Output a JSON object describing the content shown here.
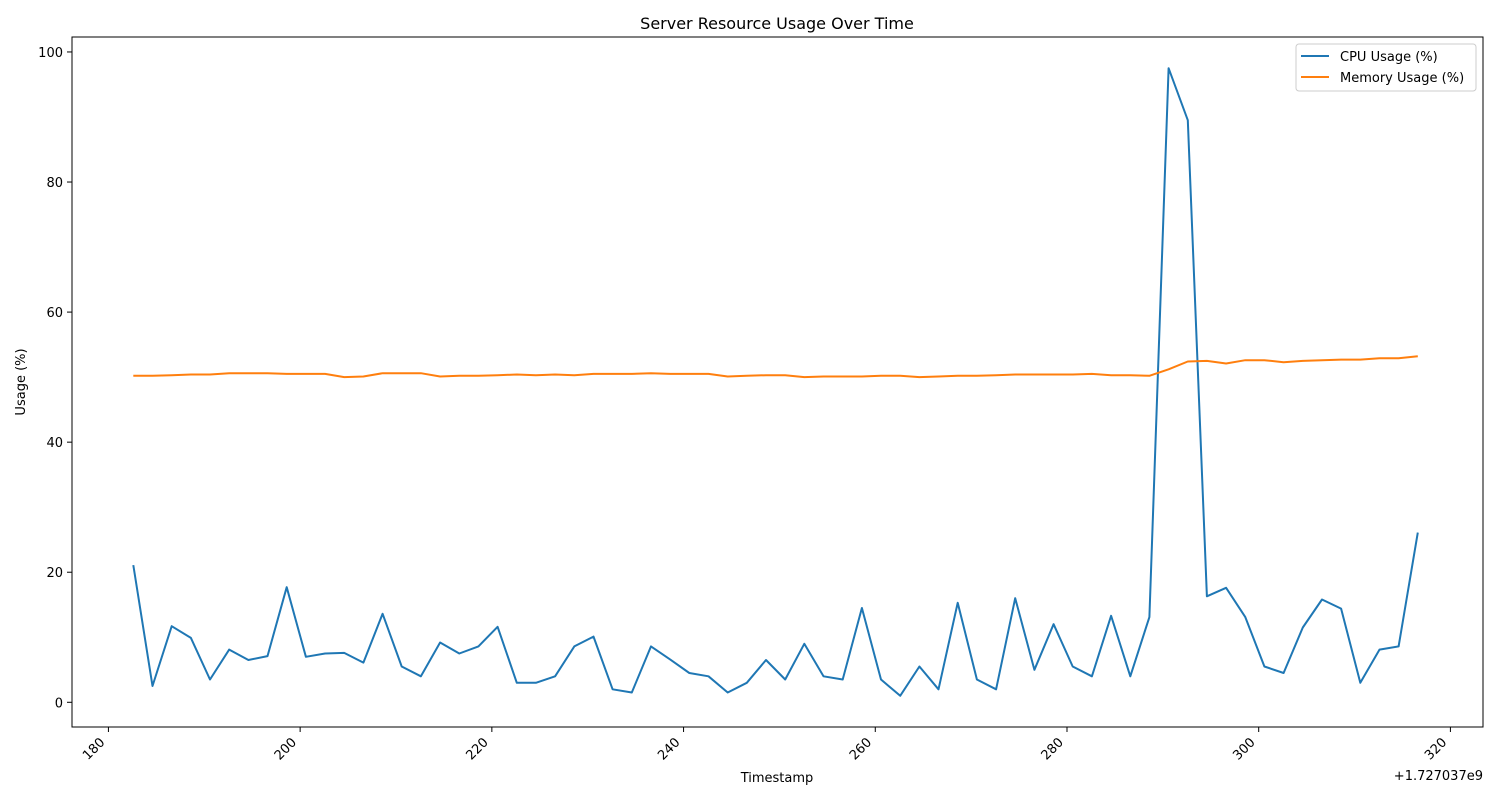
{
  "chart_data": {
    "type": "line",
    "title": "Server Resource Usage Over Time",
    "xlabel": "Timestamp",
    "ylabel": "Usage (%)",
    "x_offset_label": "+1.727037e9",
    "xlim": [
      176.2,
      323.4
    ],
    "ylim": [
      -3.8,
      102.3
    ],
    "x_ticks": [
      180,
      200,
      220,
      240,
      260,
      280,
      300,
      320
    ],
    "y_ticks": [
      0,
      20,
      40,
      60,
      80,
      100
    ],
    "grid": false,
    "legend_position": "top-right",
    "colors": {
      "cpu": "#1f77b4",
      "memory": "#ff7f0e"
    },
    "x": [
      182.6,
      184.6,
      186.6,
      188.6,
      190.6,
      192.6,
      194.6,
      196.6,
      198.6,
      200.6,
      202.6,
      204.6,
      206.6,
      208.6,
      210.6,
      212.6,
      214.6,
      216.6,
      218.6,
      220.6,
      222.6,
      224.6,
      226.6,
      228.6,
      230.6,
      232.6,
      234.6,
      236.6,
      238.6,
      240.6,
      242.6,
      244.6,
      246.6,
      248.6,
      250.6,
      252.6,
      254.6,
      256.6,
      258.6,
      260.6,
      262.6,
      264.6,
      266.6,
      268.6,
      270.6,
      272.6,
      274.6,
      276.6,
      278.6,
      280.6,
      282.6,
      284.6,
      286.6,
      288.6,
      290.6,
      292.6,
      294.6,
      296.6,
      298.6,
      300.6,
      302.6,
      304.6,
      306.6,
      308.6,
      310.6,
      312.6,
      314.6,
      316.6
    ],
    "series": [
      {
        "name": "CPU Usage (%)",
        "color": "#1f77b4",
        "values": [
          21.1,
          2.5,
          11.7,
          9.9,
          3.5,
          8.1,
          6.5,
          7.1,
          17.7,
          7.0,
          7.5,
          7.6,
          6.1,
          13.6,
          5.5,
          4.0,
          9.2,
          7.5,
          8.6,
          11.6,
          3.0,
          3.0,
          4.0,
          8.6,
          10.1,
          2.0,
          1.5,
          8.6,
          6.6,
          4.5,
          4.0,
          1.5,
          3.0,
          6.5,
          3.5,
          9.0,
          4.0,
          3.5,
          14.5,
          3.5,
          1.0,
          5.5,
          2.0,
          15.3,
          3.5,
          2.0,
          16.0,
          5.0,
          12.0,
          5.5,
          4.0,
          13.3,
          4.0,
          13.1,
          97.5,
          89.5,
          16.3,
          17.6,
          13.1,
          5.5,
          4.5,
          11.5,
          15.8,
          14.4,
          3.0,
          8.1,
          8.6,
          26.1
        ]
      },
      {
        "name": "Memory Usage (%)",
        "color": "#ff7f0e",
        "values": [
          50.2,
          50.2,
          50.3,
          50.4,
          50.4,
          50.6,
          50.6,
          50.6,
          50.5,
          50.5,
          50.5,
          50.0,
          50.1,
          50.6,
          50.6,
          50.6,
          50.1,
          50.2,
          50.2,
          50.3,
          50.4,
          50.3,
          50.4,
          50.3,
          50.5,
          50.5,
          50.5,
          50.6,
          50.5,
          50.5,
          50.5,
          50.1,
          50.2,
          50.3,
          50.3,
          50.0,
          50.1,
          50.1,
          50.1,
          50.2,
          50.2,
          50.0,
          50.1,
          50.2,
          50.2,
          50.3,
          50.4,
          50.4,
          50.4,
          50.4,
          50.5,
          50.3,
          50.3,
          50.2,
          51.2,
          52.4,
          52.5,
          52.1,
          52.6,
          52.6,
          52.3,
          52.5,
          52.6,
          52.7,
          52.7,
          52.9,
          52.9,
          53.2
        ]
      }
    ]
  }
}
